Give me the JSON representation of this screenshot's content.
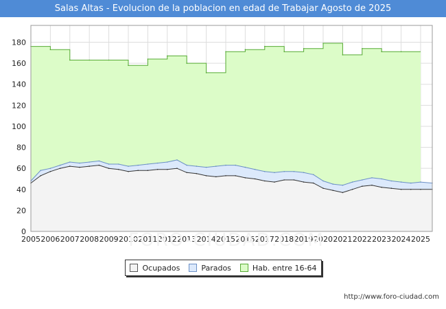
{
  "title": "Salas Altas - Evolucion de la poblacion en edad de Trabajar Agosto de 2025",
  "watermark": "FORO-CIUDAD.COM",
  "source": "http://www.foro-ciudad.com",
  "legend": [
    {
      "label": "Ocupados",
      "color": "#f3f3f3",
      "border": "#555555"
    },
    {
      "label": "Parados",
      "color": "#dce9fb",
      "border": "#6a8fc6"
    },
    {
      "label": "Hab. entre 16-64",
      "color": "#dcfcc8",
      "border": "#55aa33"
    }
  ],
  "chart_data": {
    "type": "area",
    "x_ticks": [
      "2005",
      "2006",
      "2007",
      "2008",
      "2009",
      "2010",
      "2011",
      "2012",
      "2013",
      "2014",
      "2015",
      "2016",
      "2017",
      "2018",
      "2019",
      "2020",
      "2021",
      "2022",
      "2023",
      "2024",
      "2025"
    ],
    "y_ticks": [
      0,
      20,
      40,
      60,
      80,
      100,
      120,
      140,
      160,
      180
    ],
    "xlim": [
      2005,
      2025.6
    ],
    "ylim": [
      0,
      196
    ],
    "grid": true,
    "series": [
      {
        "name": "Hab. entre 16-64",
        "step": true,
        "values": [
          [
            2005,
            176
          ],
          [
            2006,
            173
          ],
          [
            2007,
            163
          ],
          [
            2008,
            163
          ],
          [
            2009,
            163
          ],
          [
            2010,
            158
          ],
          [
            2011,
            164
          ],
          [
            2012,
            167
          ],
          [
            2013,
            160
          ],
          [
            2014,
            151
          ],
          [
            2015,
            171
          ],
          [
            2016,
            173
          ],
          [
            2017,
            176
          ],
          [
            2018,
            171
          ],
          [
            2019,
            174
          ],
          [
            2020,
            179
          ],
          [
            2021,
            168
          ],
          [
            2022,
            174
          ],
          [
            2023,
            171
          ],
          [
            2024,
            171
          ]
        ]
      },
      {
        "name": "Parados",
        "values": [
          [
            2005,
            48
          ],
          [
            2005.5,
            58
          ],
          [
            2006,
            60
          ],
          [
            2006.5,
            63
          ],
          [
            2007,
            66
          ],
          [
            2007.5,
            65
          ],
          [
            2008,
            66
          ],
          [
            2008.5,
            67
          ],
          [
            2009,
            64
          ],
          [
            2009.5,
            64
          ],
          [
            2010,
            62
          ],
          [
            2010.5,
            63
          ],
          [
            2011,
            64
          ],
          [
            2011.5,
            65
          ],
          [
            2012,
            66
          ],
          [
            2012.5,
            68
          ],
          [
            2013,
            63
          ],
          [
            2013.5,
            62
          ],
          [
            2014,
            61
          ],
          [
            2014.5,
            62
          ],
          [
            2015,
            63
          ],
          [
            2015.5,
            63
          ],
          [
            2016,
            61
          ],
          [
            2016.5,
            59
          ],
          [
            2017,
            57
          ],
          [
            2017.5,
            56
          ],
          [
            2018,
            57
          ],
          [
            2018.5,
            57
          ],
          [
            2019,
            56
          ],
          [
            2019.5,
            54
          ],
          [
            2020,
            48
          ],
          [
            2020.5,
            45
          ],
          [
            2021,
            44
          ],
          [
            2021.5,
            47
          ],
          [
            2022,
            49
          ],
          [
            2022.5,
            51
          ],
          [
            2023,
            50
          ],
          [
            2023.5,
            48
          ],
          [
            2024,
            47
          ],
          [
            2024.5,
            46
          ],
          [
            2025,
            47
          ],
          [
            2025.6,
            46
          ]
        ]
      },
      {
        "name": "Ocupados",
        "values": [
          [
            2005,
            46
          ],
          [
            2005.5,
            53
          ],
          [
            2006,
            57
          ],
          [
            2006.5,
            60
          ],
          [
            2007,
            62
          ],
          [
            2007.5,
            61
          ],
          [
            2008,
            62
          ],
          [
            2008.5,
            63
          ],
          [
            2009,
            60
          ],
          [
            2009.5,
            59
          ],
          [
            2010,
            57
          ],
          [
            2010.5,
            58
          ],
          [
            2011,
            58
          ],
          [
            2011.5,
            59
          ],
          [
            2012,
            59
          ],
          [
            2012.5,
            60
          ],
          [
            2013,
            56
          ],
          [
            2013.5,
            55
          ],
          [
            2014,
            53
          ],
          [
            2014.5,
            52
          ],
          [
            2015,
            53
          ],
          [
            2015.5,
            53
          ],
          [
            2016,
            51
          ],
          [
            2016.5,
            50
          ],
          [
            2017,
            48
          ],
          [
            2017.5,
            47
          ],
          [
            2018,
            49
          ],
          [
            2018.5,
            49
          ],
          [
            2019,
            47
          ],
          [
            2019.5,
            46
          ],
          [
            2020,
            41
          ],
          [
            2020.5,
            39
          ],
          [
            2021,
            37
          ],
          [
            2021.5,
            40
          ],
          [
            2022,
            43
          ],
          [
            2022.5,
            44
          ],
          [
            2023,
            42
          ],
          [
            2023.5,
            41
          ],
          [
            2024,
            40
          ],
          [
            2024.5,
            40
          ],
          [
            2025,
            40
          ],
          [
            2025.6,
            40
          ]
        ]
      }
    ]
  }
}
